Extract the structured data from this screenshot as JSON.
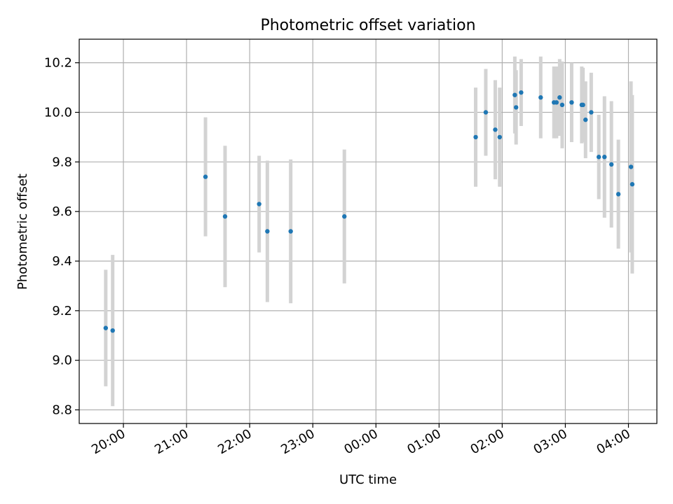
{
  "chart_data": {
    "type": "scatter",
    "title": "Photometric offset variation",
    "xlabel": "UTC time",
    "ylabel": "Photometric offset",
    "x_ticks": [
      "20:00",
      "21:00",
      "22:00",
      "23:00",
      "00:00",
      "01:00",
      "02:00",
      "03:00",
      "04:00"
    ],
    "x_tick_hours": [
      0,
      1,
      2,
      3,
      4,
      5,
      6,
      7,
      8
    ],
    "y_ticks": [
      "8.8",
      "9.0",
      "9.2",
      "9.4",
      "9.6",
      "9.8",
      "10.0",
      "10.2"
    ],
    "y_tick_values": [
      8.8,
      9.0,
      9.2,
      9.4,
      9.6,
      9.8,
      10.0,
      10.2
    ],
    "xlim_hours": [
      -0.7,
      8.45
    ],
    "ylim": [
      8.745,
      10.295
    ],
    "grid": true,
    "colors": {
      "point": "#1f77b4",
      "errorbar": "#d3d3d3",
      "grid": "#b0b0b0"
    },
    "series": [
      {
        "x_hours": [
          -0.28,
          -0.17,
          1.3,
          1.61,
          2.15,
          2.28,
          2.65,
          3.5,
          5.58,
          5.74,
          5.89,
          5.96,
          6.2,
          6.22,
          6.3,
          6.61,
          6.82,
          6.86,
          6.91,
          6.95,
          7.1,
          7.26,
          7.28,
          7.32,
          7.41,
          7.53,
          7.62,
          7.73,
          7.84,
          8.04,
          8.06
        ],
        "y": [
          9.13,
          9.12,
          9.74,
          9.58,
          9.63,
          9.52,
          9.52,
          9.58,
          9.9,
          10.0,
          9.93,
          9.9,
          10.07,
          10.02,
          10.08,
          10.06,
          10.04,
          10.04,
          10.06,
          10.03,
          10.04,
          10.03,
          10.03,
          9.97,
          10.0,
          9.82,
          9.82,
          9.79,
          9.67,
          9.78,
          9.71
        ],
        "err": [
          0.235,
          0.305,
          0.24,
          0.285,
          0.195,
          0.285,
          0.29,
          0.27,
          0.2,
          0.175,
          0.2,
          0.2,
          0.155,
          0.15,
          0.135,
          0.165,
          0.145,
          0.145,
          0.155,
          0.175,
          0.16,
          0.155,
          0.15,
          0.155,
          0.16,
          0.17,
          0.245,
          0.255,
          0.22,
          0.345,
          0.36
        ]
      }
    ]
  }
}
